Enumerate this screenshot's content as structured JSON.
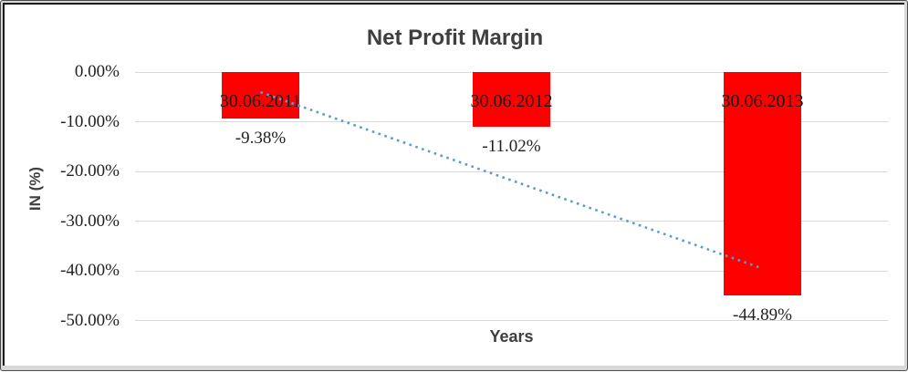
{
  "chart_data": {
    "type": "bar",
    "title": "Net Profit Margin",
    "xlabel": "Years",
    "ylabel": "IN (%)",
    "categories": [
      "30.06.2011",
      "30.06.2012",
      "30.06.2013"
    ],
    "values": [
      -9.38,
      -11.02,
      -44.89
    ],
    "data_labels": [
      "-9.38%",
      "-11.02%",
      "-44.89%"
    ],
    "unit": "percent",
    "ylim": [
      -50,
      0
    ],
    "yticks": [
      {
        "value": 0,
        "label": "0.00%"
      },
      {
        "value": -10,
        "label": "-10.00%"
      },
      {
        "value": -20,
        "label": "-20.00%"
      },
      {
        "value": -30,
        "label": "-30.00%"
      },
      {
        "value": -40,
        "label": "-40.00%"
      },
      {
        "value": -50,
        "label": "-50.00%"
      }
    ],
    "grid": true,
    "legend": false,
    "bar_color": "#FF0000",
    "trendline": {
      "type": "linear",
      "style": "dotted",
      "color": "#5B9BD5",
      "start_value_pct": -4.0,
      "end_value_pct": -39.5
    },
    "colors": {
      "gridline": "#D9D9D9",
      "axis_text": "#1F1F1F",
      "title_text": "#3F3F3F",
      "frame_border": "#1C1C1C",
      "outer_margin": "#D8D8D8"
    }
  }
}
